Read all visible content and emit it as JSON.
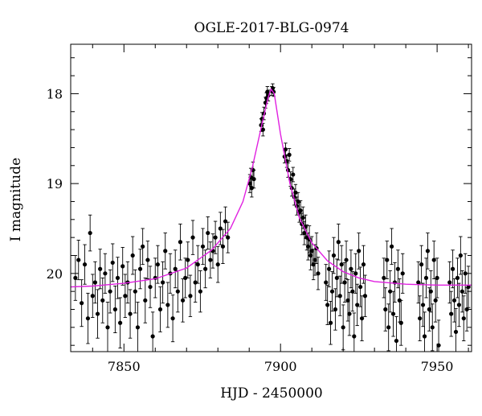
{
  "chart_data": {
    "type": "scatter",
    "title": "OGLE-2017-BLG-0974",
    "xlabel": "HJD - 2450000",
    "ylabel": "I magnitude",
    "xlim": [
      7833,
      7961
    ],
    "ylim": [
      20.87,
      17.45
    ],
    "y_inverted": true,
    "grid": false,
    "legend": "none",
    "x_ticks": [
      7850,
      7900,
      7950
    ],
    "y_ticks": [
      18,
      19,
      20
    ],
    "x_tick_labels": [
      "7850",
      "7900",
      "7950"
    ],
    "y_tick_labels": [
      "18",
      "19",
      "20"
    ],
    "colors": {
      "points": "#000000",
      "model": "#e020e0"
    },
    "model": {
      "type": "microlensing-fit",
      "x": [
        7833,
        7840,
        7850,
        7860,
        7870,
        7878,
        7884,
        7888,
        7891,
        7894,
        7896,
        7897,
        7898,
        7900,
        7903,
        7906,
        7910,
        7915,
        7920,
        7925,
        7930,
        7940,
        7950,
        7961
      ],
      "y": [
        20.15,
        20.14,
        20.11,
        20.06,
        19.94,
        19.74,
        19.5,
        19.2,
        18.82,
        18.35,
        18.05,
        17.95,
        18.0,
        18.45,
        19.0,
        19.38,
        19.66,
        19.86,
        19.98,
        20.05,
        20.09,
        20.12,
        20.13,
        20.13
      ]
    },
    "series": [
      {
        "values": [
          [
            7834.5,
            20.05,
            0.25
          ],
          [
            7835.5,
            19.85,
            0.22
          ],
          [
            7836.5,
            20.33,
            0.26
          ],
          [
            7837.5,
            19.9,
            0.22
          ],
          [
            7838.5,
            20.5,
            0.28
          ],
          [
            7839.2,
            19.55,
            0.2
          ],
          [
            7840,
            20.25,
            0.24
          ],
          [
            7840.8,
            20.1,
            0.23
          ],
          [
            7841.6,
            20.45,
            0.27
          ],
          [
            7842.4,
            19.95,
            0.22
          ],
          [
            7843.2,
            20.3,
            0.25
          ],
          [
            7844,
            20.0,
            0.22
          ],
          [
            7844.8,
            20.6,
            0.28
          ],
          [
            7845.6,
            20.2,
            0.24
          ],
          [
            7846.4,
            19.88,
            0.21
          ],
          [
            7847.2,
            20.4,
            0.26
          ],
          [
            7848,
            20.05,
            0.23
          ],
          [
            7848.8,
            20.55,
            0.28
          ],
          [
            7849.6,
            19.92,
            0.21
          ],
          [
            7850.4,
            20.25,
            0.24
          ],
          [
            7851.2,
            20.1,
            0.23
          ],
          [
            7852,
            20.45,
            0.27
          ],
          [
            7852.8,
            19.8,
            0.21
          ],
          [
            7853.6,
            20.2,
            0.24
          ],
          [
            7854.4,
            20.6,
            0.28
          ],
          [
            7855.2,
            19.95,
            0.22
          ],
          [
            7856,
            19.7,
            0.2
          ],
          [
            7856.8,
            20.3,
            0.25
          ],
          [
            7857.6,
            19.85,
            0.21
          ],
          [
            7858.4,
            20.15,
            0.23
          ],
          [
            7859.2,
            20.7,
            0.27
          ],
          [
            7860,
            20.05,
            0.22
          ],
          [
            7860.8,
            19.9,
            0.21
          ],
          [
            7861.6,
            20.4,
            0.25
          ],
          [
            7862.4,
            20.1,
            0.23
          ],
          [
            7863.2,
            19.75,
            0.2
          ],
          [
            7864,
            20.35,
            0.25
          ],
          [
            7864.8,
            20.0,
            0.22
          ],
          [
            7865.6,
            20.5,
            0.26
          ],
          [
            7866.4,
            19.95,
            0.21
          ],
          [
            7867.2,
            20.2,
            0.23
          ],
          [
            7868,
            19.65,
            0.2
          ],
          [
            7868.8,
            20.3,
            0.24
          ],
          [
            7869.6,
            20.05,
            0.22
          ],
          [
            7870.4,
            19.85,
            0.2
          ],
          [
            7871.2,
            20.25,
            0.23
          ],
          [
            7872,
            19.6,
            0.19
          ],
          [
            7872.8,
            20.1,
            0.22
          ],
          [
            7873.6,
            19.9,
            0.21
          ],
          [
            7874.4,
            20.2,
            0.23
          ],
          [
            7875.2,
            19.7,
            0.2
          ],
          [
            7876,
            19.95,
            0.21
          ],
          [
            7876.8,
            19.55,
            0.18
          ],
          [
            7877.6,
            19.85,
            0.2
          ],
          [
            7878.4,
            19.75,
            0.19
          ],
          [
            7879.2,
            19.6,
            0.18
          ],
          [
            7880,
            19.9,
            0.2
          ],
          [
            7880.8,
            19.5,
            0.18
          ],
          [
            7881.6,
            19.7,
            0.19
          ],
          [
            7882.4,
            19.42,
            0.16
          ],
          [
            7883.2,
            19.6,
            0.17
          ],
          [
            7890.2,
            19.0,
            0.1
          ],
          [
            7890.5,
            18.93,
            0.1
          ],
          [
            7890.8,
            19.05,
            0.1
          ],
          [
            7891.2,
            18.85,
            0.09
          ],
          [
            7891.5,
            18.95,
            0.1
          ],
          [
            7893.8,
            18.35,
            0.07
          ],
          [
            7894.1,
            18.28,
            0.07
          ],
          [
            7894.4,
            18.4,
            0.07
          ],
          [
            7894.7,
            18.22,
            0.07
          ],
          [
            7895.2,
            18.1,
            0.06
          ],
          [
            7895.5,
            18.05,
            0.06
          ],
          [
            7895.8,
            17.98,
            0.06
          ],
          [
            7896.1,
            18.02,
            0.06
          ],
          [
            7897.2,
            17.97,
            0.05
          ],
          [
            7897.5,
            17.94,
            0.05
          ],
          [
            7897.8,
            17.98,
            0.05
          ],
          [
            7901.3,
            18.7,
            0.07
          ],
          [
            7901.6,
            18.62,
            0.07
          ],
          [
            7902,
            18.75,
            0.07
          ],
          [
            7902.4,
            18.85,
            0.08
          ],
          [
            7902.8,
            18.68,
            0.07
          ],
          [
            7903.2,
            18.95,
            0.08
          ],
          [
            7903.6,
            19.05,
            0.09
          ],
          [
            7904,
            18.9,
            0.08
          ],
          [
            7904.4,
            19.15,
            0.09
          ],
          [
            7904.8,
            19.1,
            0.09
          ],
          [
            7905.2,
            19.25,
            0.1
          ],
          [
            7905.6,
            19.2,
            0.1
          ],
          [
            7906,
            19.32,
            0.11
          ],
          [
            7906.4,
            19.3,
            0.11
          ],
          [
            7906.8,
            19.45,
            0.12
          ],
          [
            7907.2,
            19.38,
            0.12
          ],
          [
            7907.6,
            19.55,
            0.13
          ],
          [
            7908,
            19.48,
            0.13
          ],
          [
            7908.4,
            19.6,
            0.14
          ],
          [
            7908.8,
            19.7,
            0.15
          ],
          [
            7909.2,
            19.62,
            0.15
          ],
          [
            7909.6,
            19.8,
            0.16
          ],
          [
            7910,
            19.75,
            0.16
          ],
          [
            7910.5,
            19.9,
            0.17
          ],
          [
            7911,
            19.85,
            0.17
          ],
          [
            7911.5,
            19.72,
            0.17
          ],
          [
            7912,
            20.0,
            0.18
          ],
          [
            7914.5,
            20.1,
            0.2
          ],
          [
            7915,
            20.35,
            0.22
          ],
          [
            7915.5,
            19.95,
            0.2
          ],
          [
            7916,
            20.55,
            0.24
          ],
          [
            7916.5,
            20.2,
            0.22
          ],
          [
            7917,
            19.8,
            0.2
          ],
          [
            7917.5,
            20.4,
            0.23
          ],
          [
            7918,
            20.05,
            0.21
          ],
          [
            7918.5,
            19.65,
            0.2
          ],
          [
            7919,
            20.25,
            0.22
          ],
          [
            7919.5,
            19.9,
            0.21
          ],
          [
            7920,
            20.6,
            0.25
          ],
          [
            7920.5,
            20.1,
            0.22
          ],
          [
            7921,
            19.85,
            0.21
          ],
          [
            7921.5,
            20.3,
            0.23
          ],
          [
            7922,
            20.45,
            0.24
          ],
          [
            7922.5,
            19.95,
            0.21
          ],
          [
            7923,
            20.2,
            0.22
          ],
          [
            7923.5,
            20.7,
            0.26
          ],
          [
            7924,
            20.0,
            0.22
          ],
          [
            7924.5,
            20.35,
            0.23
          ],
          [
            7925,
            19.75,
            0.2
          ],
          [
            7925.5,
            20.15,
            0.22
          ],
          [
            7926,
            20.5,
            0.25
          ],
          [
            7926.5,
            19.9,
            0.21
          ],
          [
            7927,
            20.25,
            0.23
          ],
          [
            7933,
            20.05,
            0.22
          ],
          [
            7933.5,
            20.4,
            0.24
          ],
          [
            7934,
            19.85,
            0.21
          ],
          [
            7934.5,
            20.6,
            0.26
          ],
          [
            7935,
            20.2,
            0.23
          ],
          [
            7935.5,
            19.7,
            0.2
          ],
          [
            7936,
            20.45,
            0.25
          ],
          [
            7936.5,
            20.1,
            0.22
          ],
          [
            7937,
            20.75,
            0.27
          ],
          [
            7937.5,
            19.95,
            0.21
          ],
          [
            7938,
            20.3,
            0.24
          ],
          [
            7938.5,
            20.55,
            0.25
          ],
          [
            7939,
            20.0,
            0.22
          ],
          [
            7944,
            20.1,
            0.23
          ],
          [
            7944.5,
            20.5,
            0.25
          ],
          [
            7945,
            19.9,
            0.21
          ],
          [
            7945.5,
            20.35,
            0.24
          ],
          [
            7946,
            20.7,
            0.27
          ],
          [
            7946.5,
            20.05,
            0.22
          ],
          [
            7947,
            19.75,
            0.2
          ],
          [
            7947.5,
            20.4,
            0.24
          ],
          [
            7948,
            20.2,
            0.23
          ],
          [
            7948.5,
            20.6,
            0.26
          ],
          [
            7949,
            19.85,
            0.21
          ],
          [
            7949.5,
            20.3,
            0.24
          ],
          [
            7950,
            20.05,
            0.22
          ],
          [
            7950.5,
            20.8,
            0.28
          ],
          [
            7954,
            20.1,
            0.23
          ],
          [
            7954.5,
            20.45,
            0.25
          ],
          [
            7955,
            19.95,
            0.21
          ],
          [
            7955.5,
            20.3,
            0.24
          ],
          [
            7956,
            20.65,
            0.26
          ],
          [
            7956.5,
            20.05,
            0.22
          ],
          [
            7957,
            20.35,
            0.24
          ],
          [
            7957.5,
            19.8,
            0.21
          ],
          [
            7958,
            20.2,
            0.23
          ],
          [
            7958.5,
            20.5,
            0.25
          ],
          [
            7959,
            20.0,
            0.22
          ],
          [
            7959.5,
            20.4,
            0.24
          ],
          [
            7960,
            20.15,
            0.23
          ]
        ]
      }
    ]
  }
}
